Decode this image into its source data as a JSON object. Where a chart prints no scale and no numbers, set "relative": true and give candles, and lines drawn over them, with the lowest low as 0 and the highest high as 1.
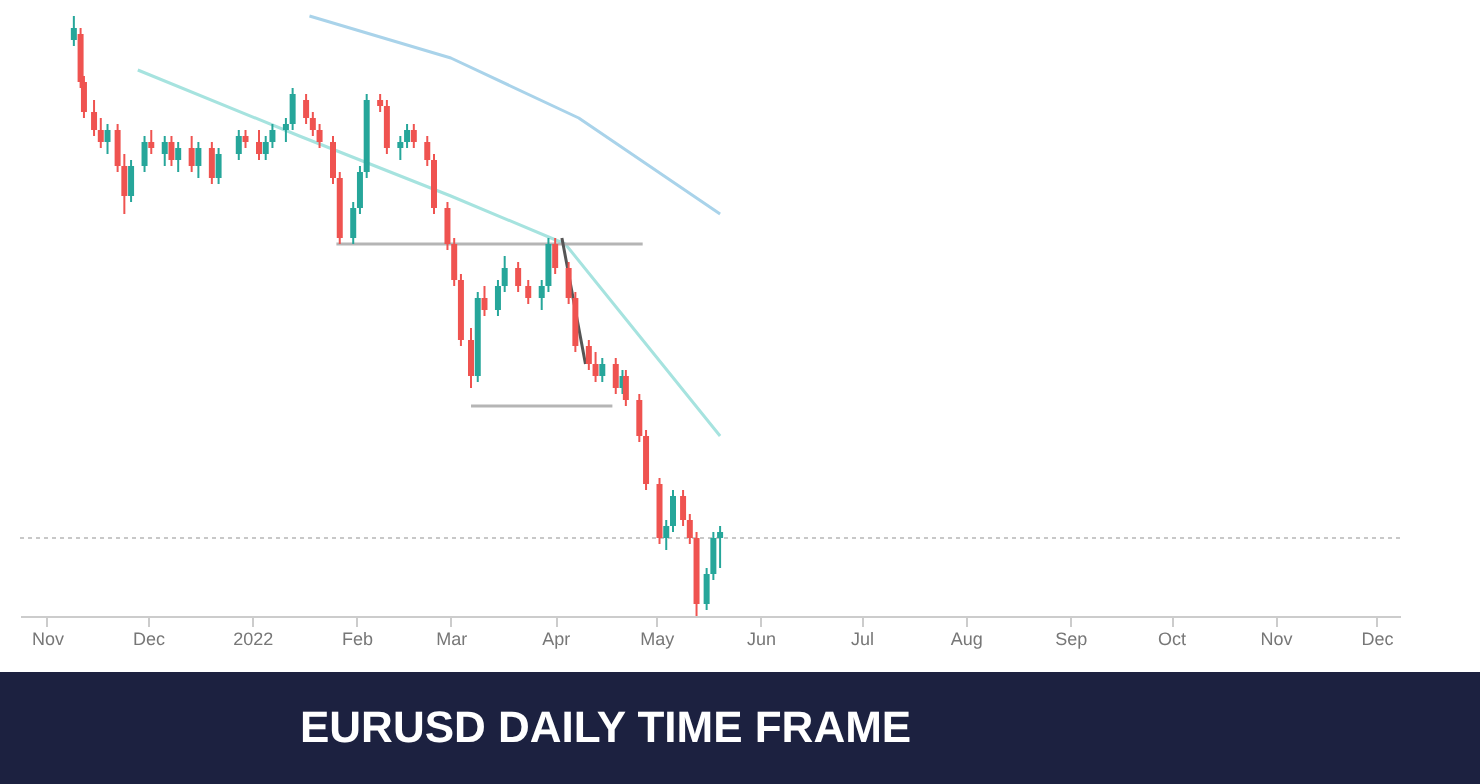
{
  "chart_data": {
    "type": "candlestick",
    "title": "EURUSD DAILY TIME FRAME",
    "relative": true,
    "x": [
      "2021-11-09",
      "2021-11-11",
      "2021-11-12",
      "2021-11-15",
      "2021-11-17",
      "2021-11-19",
      "2021-11-22",
      "2021-11-24",
      "2021-11-26",
      "2021-11-30",
      "2021-12-02",
      "2021-12-06",
      "2021-12-08",
      "2021-12-10",
      "2021-12-14",
      "2021-12-16",
      "2021-12-20",
      "2021-12-22",
      "2021-12-28",
      "2021-12-30",
      "2022-01-03",
      "2022-01-05",
      "2022-01-07",
      "2022-01-11",
      "2022-01-13",
      "2022-01-17",
      "2022-01-19",
      "2022-01-21",
      "2022-01-25",
      "2022-01-27",
      "2022-01-31",
      "2022-02-02",
      "2022-02-04",
      "2022-02-08",
      "2022-02-10",
      "2022-02-14",
      "2022-02-16",
      "2022-02-18",
      "2022-02-22",
      "2022-02-24",
      "2022-02-28",
      "2022-03-02",
      "2022-03-04",
      "2022-03-07",
      "2022-03-09",
      "2022-03-11",
      "2022-03-15",
      "2022-03-17",
      "2022-03-21",
      "2022-03-24",
      "2022-03-28",
      "2022-03-30",
      "2022-04-01",
      "2022-04-05",
      "2022-04-07",
      "2022-04-11",
      "2022-04-13",
      "2022-04-15",
      "2022-04-19",
      "2022-04-21",
      "2022-04-22",
      "2022-04-26",
      "2022-04-28",
      "2022-05-02",
      "2022-05-04",
      "2022-05-06",
      "2022-05-09",
      "2022-05-11",
      "2022-05-13",
      "2022-05-16",
      "2022-05-18",
      "2022-05-20"
    ],
    "ohlc": [
      [
        0.96,
        1.0,
        0.95,
        0.98
      ],
      [
        0.97,
        0.98,
        0.88,
        0.89
      ],
      [
        0.89,
        0.9,
        0.83,
        0.84
      ],
      [
        0.84,
        0.86,
        0.8,
        0.81
      ],
      [
        0.81,
        0.83,
        0.78,
        0.79
      ],
      [
        0.79,
        0.82,
        0.77,
        0.81
      ],
      [
        0.81,
        0.82,
        0.74,
        0.75
      ],
      [
        0.75,
        0.77,
        0.67,
        0.7
      ],
      [
        0.7,
        0.76,
        0.69,
        0.75
      ],
      [
        0.75,
        0.8,
        0.74,
        0.79
      ],
      [
        0.79,
        0.81,
        0.77,
        0.78
      ],
      [
        0.77,
        0.8,
        0.75,
        0.79
      ],
      [
        0.79,
        0.8,
        0.75,
        0.76
      ],
      [
        0.76,
        0.79,
        0.74,
        0.78
      ],
      [
        0.78,
        0.8,
        0.74,
        0.75
      ],
      [
        0.75,
        0.79,
        0.73,
        0.78
      ],
      [
        0.78,
        0.79,
        0.72,
        0.73
      ],
      [
        0.73,
        0.78,
        0.72,
        0.77
      ],
      [
        0.77,
        0.81,
        0.76,
        0.8
      ],
      [
        0.8,
        0.81,
        0.78,
        0.79
      ],
      [
        0.79,
        0.81,
        0.76,
        0.77
      ],
      [
        0.77,
        0.8,
        0.76,
        0.79
      ],
      [
        0.79,
        0.82,
        0.78,
        0.81
      ],
      [
        0.81,
        0.83,
        0.79,
        0.82
      ],
      [
        0.82,
        0.88,
        0.81,
        0.87
      ],
      [
        0.86,
        0.87,
        0.82,
        0.83
      ],
      [
        0.83,
        0.84,
        0.8,
        0.81
      ],
      [
        0.81,
        0.82,
        0.78,
        0.79
      ],
      [
        0.79,
        0.8,
        0.72,
        0.73
      ],
      [
        0.73,
        0.74,
        0.62,
        0.63
      ],
      [
        0.63,
        0.69,
        0.62,
        0.68
      ],
      [
        0.68,
        0.75,
        0.67,
        0.74
      ],
      [
        0.74,
        0.87,
        0.73,
        0.86
      ],
      [
        0.86,
        0.87,
        0.84,
        0.85
      ],
      [
        0.85,
        0.86,
        0.77,
        0.78
      ],
      [
        0.78,
        0.8,
        0.76,
        0.79
      ],
      [
        0.79,
        0.82,
        0.78,
        0.81
      ],
      [
        0.81,
        0.82,
        0.78,
        0.79
      ],
      [
        0.79,
        0.8,
        0.75,
        0.76
      ],
      [
        0.76,
        0.77,
        0.67,
        0.68
      ],
      [
        0.68,
        0.69,
        0.61,
        0.62
      ],
      [
        0.62,
        0.63,
        0.55,
        0.56
      ],
      [
        0.56,
        0.57,
        0.45,
        0.46
      ],
      [
        0.46,
        0.48,
        0.38,
        0.4
      ],
      [
        0.4,
        0.54,
        0.39,
        0.53
      ],
      [
        0.53,
        0.55,
        0.5,
        0.51
      ],
      [
        0.51,
        0.56,
        0.5,
        0.55
      ],
      [
        0.55,
        0.6,
        0.54,
        0.58
      ],
      [
        0.58,
        0.59,
        0.54,
        0.55
      ],
      [
        0.55,
        0.56,
        0.52,
        0.53
      ],
      [
        0.53,
        0.56,
        0.51,
        0.55
      ],
      [
        0.55,
        0.63,
        0.54,
        0.62
      ],
      [
        0.62,
        0.63,
        0.57,
        0.58
      ],
      [
        0.58,
        0.59,
        0.52,
        0.53
      ],
      [
        0.53,
        0.54,
        0.44,
        0.45
      ],
      [
        0.45,
        0.46,
        0.41,
        0.42
      ],
      [
        0.42,
        0.44,
        0.39,
        0.4
      ],
      [
        0.4,
        0.43,
        0.39,
        0.42
      ],
      [
        0.42,
        0.43,
        0.37,
        0.38
      ],
      [
        0.38,
        0.41,
        0.37,
        0.4
      ],
      [
        0.4,
        0.41,
        0.35,
        0.36
      ],
      [
        0.36,
        0.37,
        0.29,
        0.3
      ],
      [
        0.3,
        0.31,
        0.21,
        0.22
      ],
      [
        0.22,
        0.23,
        0.12,
        0.13
      ],
      [
        0.13,
        0.16,
        0.11,
        0.15
      ],
      [
        0.15,
        0.21,
        0.14,
        0.2
      ],
      [
        0.2,
        0.21,
        0.15,
        0.16
      ],
      [
        0.16,
        0.17,
        0.12,
        0.13
      ],
      [
        0.13,
        0.14,
        0.0,
        0.02
      ],
      [
        0.02,
        0.08,
        0.01,
        0.07
      ],
      [
        0.07,
        0.14,
        0.06,
        0.13
      ],
      [
        0.13,
        0.15,
        0.08,
        0.14
      ]
    ],
    "colors": [
      "#26a69a",
      "#ef5350",
      "#ef5350",
      "#ef5350",
      "#ef5350",
      "#26a69a",
      "#ef5350",
      "#ef5350",
      "#26a69a",
      "#26a69a",
      "#ef5350",
      "#26a69a",
      "#ef5350",
      "#26a69a",
      "#ef5350",
      "#26a69a",
      "#ef5350",
      "#26a69a",
      "#26a69a",
      "#ef5350",
      "#ef5350",
      "#26a69a",
      "#26a69a",
      "#26a69a",
      "#26a69a",
      "#ef5350",
      "#ef5350",
      "#ef5350",
      "#ef5350",
      "#ef5350",
      "#26a69a",
      "#26a69a",
      "#26a69a",
      "#ef5350",
      "#ef5350",
      "#26a69a",
      "#26a69a",
      "#ef5350",
      "#ef5350",
      "#ef5350",
      "#ef5350",
      "#ef5350",
      "#ef5350",
      "#ef5350",
      "#26a69a",
      "#ef5350",
      "#26a69a",
      "#26a69a",
      "#ef5350",
      "#ef5350",
      "#26a69a",
      "#26a69a",
      "#ef5350",
      "#ef5350",
      "#ef5350",
      "#ef5350",
      "#ef5350",
      "#26a69a",
      "#ef5350",
      "#26a69a",
      "#ef5350",
      "#ef5350",
      "#ef5350",
      "#ef5350",
      "#26a69a",
      "#26a69a",
      "#ef5350",
      "#ef5350",
      "#ef5350",
      "#26a69a",
      "#26a69a",
      "#26a69a"
    ],
    "series": [
      {
        "type": "line",
        "color": "#a9d3ea",
        "x": [
          "2022-01-18",
          "2022-03-01",
          "2022-04-08",
          "2022-05-20"
        ],
        "values": [
          1.0,
          0.93,
          0.83,
          0.67
        ]
      },
      {
        "type": "line",
        "color": "#a6e3df",
        "x": [
          "2021-11-28",
          "2022-01-15",
          "2022-03-01",
          "2022-04-04",
          "2022-04-27",
          "2022-05-20"
        ],
        "values": [
          0.91,
          0.8,
          0.7,
          0.62,
          0.46,
          0.3
        ]
      },
      {
        "type": "line",
        "color": "#b5b5b5",
        "x": [
          "2022-01-26",
          "2022-04-27"
        ],
        "values": [
          0.62,
          0.62
        ]
      },
      {
        "type": "line",
        "color": "#b5b5b5",
        "x": [
          "2022-03-07",
          "2022-04-18"
        ],
        "values": [
          0.35,
          0.35
        ]
      },
      {
        "type": "line",
        "color": "#555555",
        "x": [
          "2022-04-03",
          "2022-04-10"
        ],
        "values": [
          0.63,
          0.42
        ]
      }
    ],
    "ref_lines": [
      {
        "axis": "y",
        "value": 0.13,
        "color": "#c8c8c8",
        "line_style": "dotted"
      }
    ],
    "xlim": [
      "2021-10-24",
      "2022-12-08"
    ],
    "xticks": [
      {
        "value": "2021-11-01",
        "label": "Nov"
      },
      {
        "value": "2021-12-01",
        "label": "Dec"
      },
      {
        "value": "2022-01-01",
        "label": "2022"
      },
      {
        "value": "2022-02-01",
        "label": "Feb"
      },
      {
        "value": "2022-03-01",
        "label": "Mar"
      },
      {
        "value": "2022-04-01",
        "label": "Apr"
      },
      {
        "value": "2022-05-01",
        "label": "May"
      },
      {
        "value": "2022-06-01",
        "label": "Jun"
      },
      {
        "value": "2022-07-01",
        "label": "Jul"
      },
      {
        "value": "2022-08-01",
        "label": "Aug"
      },
      {
        "value": "2022-09-01",
        "label": "Sep"
      },
      {
        "value": "2022-10-01",
        "label": "Oct"
      },
      {
        "value": "2022-11-01",
        "label": "Nov"
      },
      {
        "value": "2022-12-01",
        "label": "Dec"
      }
    ]
  }
}
